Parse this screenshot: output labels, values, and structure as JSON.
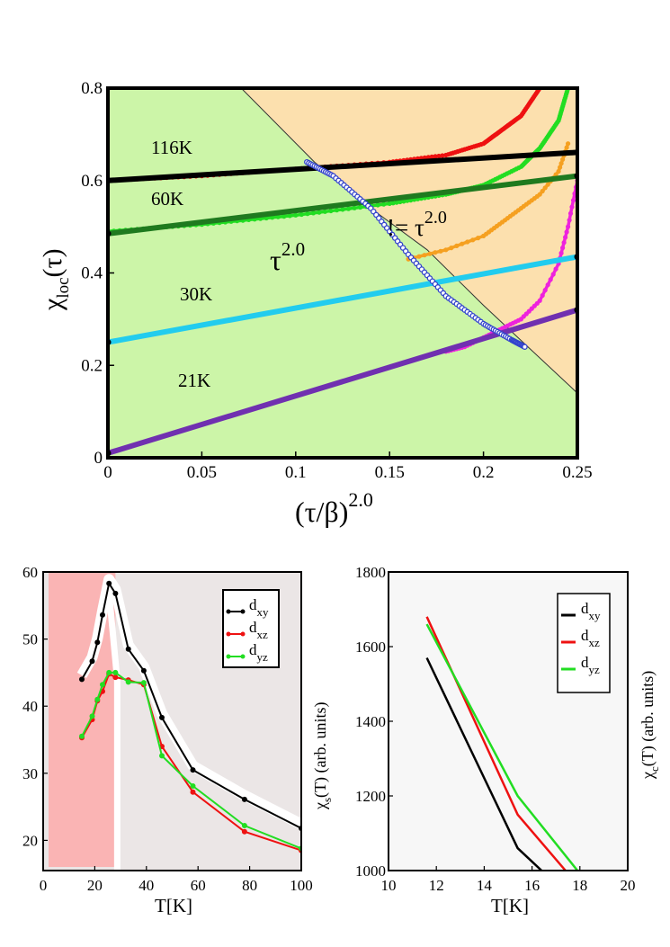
{
  "chart_data": [
    {
      "type": "line",
      "title": "",
      "xlabel": {
        "main": "(τ/β)",
        "sup": "2.0"
      },
      "ylabel": {
        "main": "χ",
        "sub": "loc",
        "tail": "(τ)"
      },
      "xlim": [
        0,
        0.25
      ],
      "ylim": [
        0,
        0.8
      ],
      "xticks": [
        0,
        0.05,
        0.1,
        0.15,
        0.2,
        0.25
      ],
      "xtick_labels": [
        "0",
        "0.05",
        "0.1",
        "0.15",
        "0.2",
        "0.25"
      ],
      "yticks": [
        0,
        0.2,
        0.4,
        0.6,
        0.8
      ],
      "ytick_labels": [
        "0",
        "0.2",
        "0.4",
        "0.6",
        "0.8"
      ],
      "region_colors": {
        "left": "#ccf5a8",
        "right": "#fce0ae"
      },
      "region_boundary": [
        [
          0.071,
          0.8
        ],
        [
          0.11,
          0.64
        ],
        [
          0.14,
          0.54
        ],
        [
          0.17,
          0.45
        ],
        [
          0.2,
          0.33
        ],
        [
          0.25,
          0.14
        ]
      ],
      "annotations": {
        "left_region": {
          "main": "τ",
          "sup": "2.0"
        },
        "right_region": {
          "main": "!= τ",
          "sup": "2.0"
        }
      },
      "series": [
        {
          "name": "116K fit",
          "label": "116K",
          "color": "#000000",
          "x": [
            0,
            0.25
          ],
          "y": [
            0.6,
            0.661
          ]
        },
        {
          "name": "60K fit",
          "label": "60K",
          "color": "#1f7a1f",
          "x": [
            0,
            0.25
          ],
          "y": [
            0.485,
            0.61
          ]
        },
        {
          "name": "30K fit",
          "label": "30K",
          "color": "#22ccee",
          "x": [
            0,
            0.25
          ],
          "y": [
            0.25,
            0.435
          ]
        },
        {
          "name": "21K fit",
          "label": "21K",
          "color": "#7030b0",
          "x": [
            0,
            0.25
          ],
          "y": [
            0.01,
            0.32
          ]
        },
        {
          "name": "116K data",
          "color": "#ee1111",
          "x": [
            0,
            0.05,
            0.1,
            0.15,
            0.18,
            0.2,
            0.21,
            0.22,
            0.23
          ],
          "y": [
            0.6,
            0.61,
            0.625,
            0.64,
            0.655,
            0.68,
            0.71,
            0.74,
            0.8
          ]
        },
        {
          "name": "60K data",
          "color": "#22dd22",
          "x": [
            0,
            0.05,
            0.1,
            0.15,
            0.18,
            0.2,
            0.22,
            0.23,
            0.24,
            0.245
          ],
          "y": [
            0.49,
            0.505,
            0.525,
            0.55,
            0.57,
            0.59,
            0.63,
            0.67,
            0.73,
            0.8
          ]
        },
        {
          "name": "30K data",
          "color": "#f5a020",
          "x": [
            0.16,
            0.18,
            0.2,
            0.21,
            0.22,
            0.23,
            0.24,
            0.245
          ],
          "y": [
            0.43,
            0.45,
            0.48,
            0.51,
            0.54,
            0.57,
            0.62,
            0.68
          ]
        },
        {
          "name": "21K data",
          "color": "#ee22dd",
          "x": [
            0.18,
            0.19,
            0.2,
            0.21,
            0.22,
            0.23,
            0.24,
            0.245,
            0.25
          ],
          "y": [
            0.23,
            0.24,
            0.26,
            0.28,
            0.3,
            0.34,
            0.42,
            0.5,
            0.6
          ]
        },
        {
          "name": "crossover",
          "color": "#3344cc",
          "x": [
            0.106,
            0.12,
            0.14,
            0.16,
            0.18,
            0.2,
            0.215,
            0.222
          ],
          "y": [
            0.64,
            0.61,
            0.54,
            0.44,
            0.35,
            0.29,
            0.255,
            0.24
          ]
        }
      ]
    },
    {
      "type": "line",
      "xlabel": "T[K]",
      "ylabel": "",
      "xlim": [
        0,
        100
      ],
      "ylim": [
        15.5,
        60
      ],
      "xticks": [
        0,
        20,
        40,
        60,
        80,
        100
      ],
      "xtick_labels": [
        "0",
        "20",
        "40",
        "60",
        "80",
        "100"
      ],
      "yticks": [
        20,
        30,
        40,
        50,
        60
      ],
      "ytick_labels": [
        "20",
        "30",
        "40",
        "50",
        "60"
      ],
      "region_colors": {
        "left": "#fab4b4",
        "right": "#ebe6e6"
      },
      "region_split_x": 28,
      "legend": [
        {
          "main": "d",
          "sub": "xy",
          "color": "#000000"
        },
        {
          "main": "d",
          "sub": "xz",
          "color": "#ee1111"
        },
        {
          "main": "d",
          "sub": "yz",
          "color": "#22dd22"
        }
      ],
      "series": [
        {
          "name": "d_xy",
          "color": "#000000",
          "x": [
            15,
            19,
            21,
            23,
            25.5,
            28,
            33,
            39,
            46,
            58,
            78,
            100
          ],
          "y": [
            44,
            46.7,
            49.5,
            53.6,
            58.3,
            56.8,
            48.5,
            45.3,
            38.3,
            30.5,
            26.1,
            21.8
          ]
        },
        {
          "name": "d_xz",
          "color": "#ee1111",
          "x": [
            15,
            19,
            21,
            23,
            25.5,
            28,
            33,
            39,
            46,
            58,
            78,
            100
          ],
          "y": [
            35.3,
            38,
            40.8,
            42.2,
            44.8,
            44.3,
            43.9,
            43.2,
            34,
            27.2,
            21.3,
            18.5
          ]
        },
        {
          "name": "d_yz",
          "color": "#22dd22",
          "x": [
            15,
            19,
            21,
            23,
            25.5,
            28,
            33,
            39,
            46,
            58,
            78,
            100
          ],
          "y": [
            35.5,
            38.5,
            41,
            43.2,
            45,
            45,
            43.6,
            43.5,
            32.6,
            28.1,
            22.2,
            18.8
          ]
        }
      ]
    },
    {
      "type": "line",
      "xlabel": "T[K]",
      "ylabel": {
        "main": "χ",
        "sub": "s",
        "tail": "(T) (arb. units)"
      },
      "ylabel_right": {
        "main": "χ",
        "sub": "c",
        "tail": "(T) (arb. units)"
      },
      "xlim": [
        10,
        20
      ],
      "ylim": [
        1000,
        1800
      ],
      "xticks": [
        10,
        12,
        14,
        16,
        18,
        20
      ],
      "xtick_labels": [
        "10",
        "12",
        "14",
        "16",
        "18",
        "20"
      ],
      "yticks": [
        1000,
        1200,
        1400,
        1600,
        1800
      ],
      "ytick_labels": [
        "1000",
        "1200",
        "1400",
        "1600",
        "1800"
      ],
      "background": "#f7f7f7",
      "legend": [
        {
          "main": "d",
          "sub": "xy",
          "color": "#000000"
        },
        {
          "main": "d",
          "sub": "xz",
          "color": "#ee1111"
        },
        {
          "main": "d",
          "sub": "yz",
          "color": "#22dd22"
        }
      ],
      "series": [
        {
          "name": "d_xy",
          "color": "#000000",
          "x": [
            11.6,
            15.4,
            16.4
          ],
          "y": [
            1570,
            1060,
            1000
          ]
        },
        {
          "name": "d_xz",
          "color": "#ee1111",
          "x": [
            11.6,
            15.4,
            17.4
          ],
          "y": [
            1680,
            1150,
            1000
          ]
        },
        {
          "name": "d_yz",
          "color": "#22dd22",
          "x": [
            11.6,
            15.4,
            17.9
          ],
          "y": [
            1660,
            1200,
            1000
          ]
        }
      ]
    }
  ]
}
